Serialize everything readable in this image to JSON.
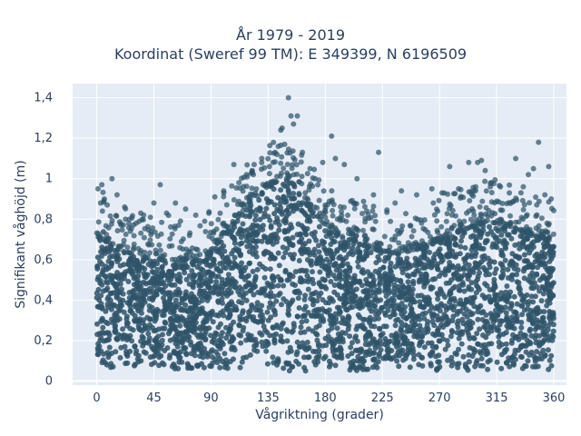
{
  "chart_data": {
    "type": "scatter",
    "title": "År 1979 - 2019",
    "subtitle": "Koordinat (Sweref 99 TM): E 349399, N 6196509",
    "xlabel": "Vågriktning (grader)",
    "ylabel": "Signifikant våghöjd (m)",
    "xlim": [
      -19,
      370
    ],
    "ylim": [
      -0.02,
      1.47
    ],
    "x_ticks": [
      0,
      45,
      90,
      135,
      180,
      225,
      270,
      315,
      360
    ],
    "x_tick_labels": [
      "0",
      "45",
      "90",
      "135",
      "180",
      "225",
      "270",
      "315",
      "360"
    ],
    "y_ticks": [
      0,
      0.2,
      0.4,
      0.6,
      0.8,
      1.0,
      1.2,
      1.4
    ],
    "y_tick_labels": [
      "0",
      "0,2",
      "0,4",
      "0,6",
      "0,8",
      "1",
      "1,2",
      "1,4"
    ],
    "grid": true,
    "background": "#E5ECF6",
    "marker_color": "#2F5469",
    "envelope": {
      "x": [
        0,
        5,
        10,
        15,
        20,
        25,
        30,
        35,
        40,
        45,
        50,
        55,
        60,
        65,
        70,
        75,
        80,
        85,
        90,
        95,
        100,
        105,
        110,
        115,
        120,
        125,
        130,
        135,
        140,
        145,
        150,
        155,
        160,
        165,
        170,
        175,
        180,
        185,
        190,
        195,
        200,
        205,
        210,
        215,
        220,
        225,
        230,
        235,
        240,
        245,
        250,
        255,
        260,
        265,
        270,
        275,
        280,
        285,
        290,
        295,
        300,
        305,
        310,
        315,
        320,
        325,
        330,
        335,
        340,
        345,
        350,
        355,
        360
      ],
      "y_min": [
        0.07,
        0.06,
        0.06,
        0.06,
        0.06,
        0.06,
        0.06,
        0.06,
        0.06,
        0.06,
        0.06,
        0.06,
        0.06,
        0.06,
        0.06,
        0.06,
        0.06,
        0.06,
        0.06,
        0.06,
        0.06,
        0.06,
        0.06,
        0.06,
        0.06,
        0.06,
        0.05,
        0.05,
        0.05,
        0.05,
        0.05,
        0.05,
        0.05,
        0.05,
        0.05,
        0.05,
        0.05,
        0.05,
        0.05,
        0.05,
        0.05,
        0.05,
        0.05,
        0.05,
        0.05,
        0.05,
        0.05,
        0.05,
        0.05,
        0.05,
        0.05,
        0.05,
        0.05,
        0.05,
        0.05,
        0.05,
        0.05,
        0.05,
        0.05,
        0.05,
        0.05,
        0.05,
        0.05,
        0.05,
        0.05,
        0.05,
        0.05,
        0.05,
        0.05,
        0.05,
        0.05,
        0.05,
        0.06
      ],
      "y_max": [
        0.72,
        0.75,
        0.7,
        0.66,
        0.64,
        0.63,
        0.62,
        0.62,
        0.6,
        0.6,
        0.6,
        0.6,
        0.6,
        0.6,
        0.6,
        0.6,
        0.6,
        0.62,
        0.64,
        0.68,
        0.72,
        0.75,
        0.8,
        0.84,
        0.88,
        0.9,
        0.93,
        0.96,
        0.98,
        0.99,
        1.0,
        0.97,
        0.92,
        0.88,
        0.84,
        0.8,
        0.77,
        0.74,
        0.72,
        0.7,
        0.69,
        0.68,
        0.67,
        0.66,
        0.65,
        0.64,
        0.64,
        0.63,
        0.63,
        0.64,
        0.65,
        0.66,
        0.67,
        0.68,
        0.7,
        0.72,
        0.73,
        0.74,
        0.75,
        0.76,
        0.77,
        0.78,
        0.78,
        0.78,
        0.77,
        0.76,
        0.75,
        0.74,
        0.73,
        0.72,
        0.71,
        0.7,
        0.68
      ]
    },
    "outliers": [
      {
        "x": 1,
        "y": 0.95
      },
      {
        "x": 4,
        "y": 0.97
      },
      {
        "x": 3,
        "y": 0.88
      },
      {
        "x": 6,
        "y": 0.9
      },
      {
        "x": 12,
        "y": 1.0
      },
      {
        "x": 16,
        "y": 0.92
      },
      {
        "x": 22,
        "y": 0.86
      },
      {
        "x": 31,
        "y": 0.78
      },
      {
        "x": 37,
        "y": 0.82
      },
      {
        "x": 45,
        "y": 0.88
      },
      {
        "x": 50,
        "y": 0.97
      },
      {
        "x": 55,
        "y": 0.83
      },
      {
        "x": 62,
        "y": 0.88
      },
      {
        "x": 70,
        "y": 0.85
      },
      {
        "x": 78,
        "y": 0.82
      },
      {
        "x": 85,
        "y": 0.79
      },
      {
        "x": 93,
        "y": 0.91
      },
      {
        "x": 100,
        "y": 0.94
      },
      {
        "x": 108,
        "y": 1.07
      },
      {
        "x": 112,
        "y": 0.98
      },
      {
        "x": 118,
        "y": 1.02
      },
      {
        "x": 124,
        "y": 1.07
      },
      {
        "x": 130,
        "y": 1.1
      },
      {
        "x": 136,
        "y": 1.06
      },
      {
        "x": 142,
        "y": 1.12
      },
      {
        "x": 145,
        "y": 1.24
      },
      {
        "x": 146,
        "y": 1.25
      },
      {
        "x": 148,
        "y": 1.17
      },
      {
        "x": 151,
        "y": 1.4
      },
      {
        "x": 153,
        "y": 1.31
      },
      {
        "x": 155,
        "y": 1.27
      },
      {
        "x": 158,
        "y": 1.31
      },
      {
        "x": 162,
        "y": 1.13
      },
      {
        "x": 168,
        "y": 1.05
      },
      {
        "x": 172,
        "y": 1.0
      },
      {
        "x": 178,
        "y": 1.08
      },
      {
        "x": 185,
        "y": 1.21
      },
      {
        "x": 188,
        "y": 1.1
      },
      {
        "x": 195,
        "y": 1.07
      },
      {
        "x": 205,
        "y": 1.0
      },
      {
        "x": 218,
        "y": 0.92
      },
      {
        "x": 222,
        "y": 1.13
      },
      {
        "x": 235,
        "y": 0.88
      },
      {
        "x": 240,
        "y": 0.94
      },
      {
        "x": 252,
        "y": 0.92
      },
      {
        "x": 264,
        "y": 0.95
      },
      {
        "x": 272,
        "y": 0.93
      },
      {
        "x": 278,
        "y": 1.06
      },
      {
        "x": 285,
        "y": 0.95
      },
      {
        "x": 293,
        "y": 1.08
      },
      {
        "x": 300,
        "y": 1.08
      },
      {
        "x": 303,
        "y": 1.09
      },
      {
        "x": 306,
        "y": 1.04
      },
      {
        "x": 310,
        "y": 0.96
      },
      {
        "x": 318,
        "y": 0.96
      },
      {
        "x": 325,
        "y": 0.93
      },
      {
        "x": 330,
        "y": 1.1
      },
      {
        "x": 336,
        "y": 0.96
      },
      {
        "x": 340,
        "y": 1.02
      },
      {
        "x": 344,
        "y": 1.05
      },
      {
        "x": 348,
        "y": 1.18
      },
      {
        "x": 353,
        "y": 0.92
      },
      {
        "x": 356,
        "y": 1.06
      },
      {
        "x": 358,
        "y": 0.9
      }
    ]
  }
}
